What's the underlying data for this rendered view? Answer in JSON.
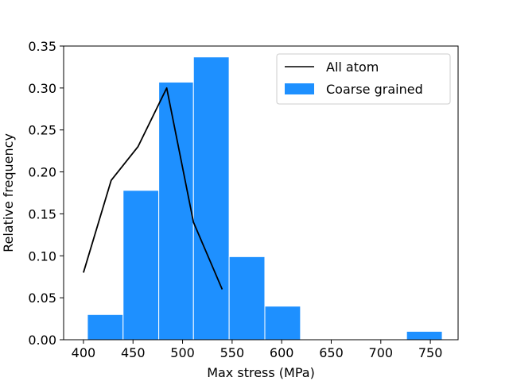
{
  "chart_data": {
    "type": "bar",
    "title": "",
    "xlabel": "Max stress (MPa)",
    "ylabel": "Relative frequency",
    "xlim": [
      380,
      778
    ],
    "ylim": [
      0,
      0.35
    ],
    "xticks": [
      400,
      450,
      500,
      550,
      600,
      650,
      700,
      750
    ],
    "yticks": [
      0.0,
      0.05,
      0.1,
      0.15,
      0.2,
      0.25,
      0.3,
      0.35
    ],
    "ytick_labels": [
      "0.00",
      "0.05",
      "0.10",
      "0.15",
      "0.20",
      "0.25",
      "0.30",
      "0.35"
    ],
    "grid": false,
    "legend_position": "top-right",
    "histogram": {
      "name": "Coarse grained",
      "color": "#1e90ff",
      "edge_color": "#ffffff",
      "bins": [
        {
          "start": 404,
          "end": 440,
          "value": 0.03
        },
        {
          "start": 440,
          "end": 476,
          "value": 0.178
        },
        {
          "start": 476,
          "end": 511,
          "value": 0.307
        },
        {
          "start": 511,
          "end": 547,
          "value": 0.337
        },
        {
          "start": 547,
          "end": 583,
          "value": 0.099
        },
        {
          "start": 583,
          "end": 619,
          "value": 0.04
        },
        {
          "start": 619,
          "end": 654,
          "value": 0
        },
        {
          "start": 654,
          "end": 690,
          "value": 0
        },
        {
          "start": 690,
          "end": 726,
          "value": 0
        },
        {
          "start": 726,
          "end": 762,
          "value": 0.01
        }
      ]
    },
    "line": {
      "name": "All atom",
      "color": "#000000",
      "x": [
        400,
        428,
        455,
        484,
        511,
        540
      ],
      "y": [
        0.08,
        0.19,
        0.23,
        0.3,
        0.14,
        0.06
      ]
    }
  }
}
